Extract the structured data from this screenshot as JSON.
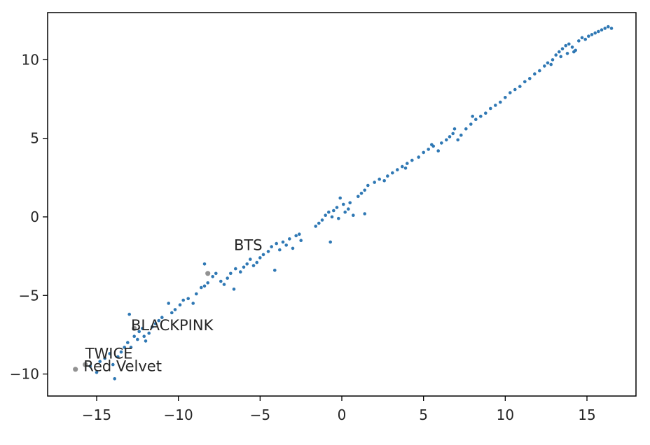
{
  "chart_data": {
    "type": "scatter",
    "title": "",
    "xlabel": "",
    "ylabel": "",
    "xlim": [
      -18.0,
      18.0
    ],
    "ylim": [
      -11.4,
      13.0
    ],
    "xticks": [
      -15,
      -10,
      -5,
      0,
      5,
      10,
      15
    ],
    "xtick_labels": [
      "−15",
      "−10",
      "−5",
      "0",
      "5",
      "10",
      "15"
    ],
    "yticks": [
      -10,
      -5,
      0,
      5,
      10
    ],
    "ytick_labels": [
      "−10",
      "−5",
      "0",
      "5",
      "10"
    ],
    "grid": false,
    "colors": {
      "points": "#2f78b4",
      "highlight": "#7f7f7f"
    },
    "series": [
      {
        "points": [
          [
            -15.4,
            -9.5
          ],
          [
            -15.0,
            -9.9
          ],
          [
            -14.8,
            -9.2
          ],
          [
            -14.5,
            -9.0
          ],
          [
            -14.2,
            -8.7
          ],
          [
            -14.0,
            -9.4
          ],
          [
            -13.9,
            -10.3
          ],
          [
            -13.7,
            -8.9
          ],
          [
            -13.5,
            -8.6
          ],
          [
            -13.3,
            -8.3
          ],
          [
            -13.1,
            -8.0
          ],
          [
            -13.0,
            -6.2
          ],
          [
            -12.9,
            -8.3
          ],
          [
            -12.7,
            -7.6
          ],
          [
            -12.5,
            -7.8
          ],
          [
            -12.4,
            -7.3
          ],
          [
            -12.2,
            -7.1
          ],
          [
            -12.1,
            -7.6
          ],
          [
            -12.0,
            -7.9
          ],
          [
            -11.8,
            -7.4
          ],
          [
            -11.6,
            -7.0
          ],
          [
            -11.4,
            -6.8
          ],
          [
            -11.2,
            -6.6
          ],
          [
            -11.0,
            -6.4
          ],
          [
            -10.6,
            -5.5
          ],
          [
            -10.4,
            -6.1
          ],
          [
            -10.2,
            -5.9
          ],
          [
            -9.9,
            -5.6
          ],
          [
            -9.7,
            -5.3
          ],
          [
            -9.4,
            -5.2
          ],
          [
            -9.1,
            -5.5
          ],
          [
            -8.9,
            -4.9
          ],
          [
            -8.6,
            -4.5
          ],
          [
            -8.4,
            -4.4
          ],
          [
            -8.2,
            -4.2
          ],
          [
            -8.4,
            -3.0
          ],
          [
            -7.9,
            -3.8
          ],
          [
            -7.7,
            -3.6
          ],
          [
            -7.4,
            -4.1
          ],
          [
            -7.2,
            -4.3
          ],
          [
            -7.0,
            -3.9
          ],
          [
            -6.8,
            -3.6
          ],
          [
            -6.6,
            -4.6
          ],
          [
            -6.5,
            -3.3
          ],
          [
            -6.2,
            -3.5
          ],
          [
            -6.0,
            -3.2
          ],
          [
            -5.8,
            -3.0
          ],
          [
            -5.6,
            -2.7
          ],
          [
            -5.4,
            -3.1
          ],
          [
            -5.2,
            -2.9
          ],
          [
            -5.0,
            -2.6
          ],
          [
            -4.8,
            -2.4
          ],
          [
            -4.5,
            -2.2
          ],
          [
            -4.3,
            -1.9
          ],
          [
            -4.1,
            -3.4
          ],
          [
            -4.0,
            -1.7
          ],
          [
            -3.8,
            -2.1
          ],
          [
            -3.6,
            -1.6
          ],
          [
            -3.4,
            -1.8
          ],
          [
            -3.2,
            -1.4
          ],
          [
            -3.0,
            -2.0
          ],
          [
            -2.8,
            -1.2
          ],
          [
            -2.6,
            -1.1
          ],
          [
            -2.5,
            -1.5
          ],
          [
            -1.6,
            -0.6
          ],
          [
            -1.4,
            -0.4
          ],
          [
            -1.2,
            -0.2
          ],
          [
            -1.0,
            0.1
          ],
          [
            -0.8,
            0.3
          ],
          [
            -0.6,
            0.0
          ],
          [
            -0.5,
            0.4
          ],
          [
            -0.3,
            0.6
          ],
          [
            -0.2,
            -0.1
          ],
          [
            -0.1,
            1.2
          ],
          [
            0.1,
            0.8
          ],
          [
            0.2,
            0.3
          ],
          [
            0.4,
            0.5
          ],
          [
            0.5,
            0.9
          ],
          [
            0.7,
            0.1
          ],
          [
            -0.7,
            -1.6
          ],
          [
            1.0,
            1.3
          ],
          [
            1.2,
            1.5
          ],
          [
            1.4,
            1.7
          ],
          [
            1.6,
            2.0
          ],
          [
            1.4,
            0.2
          ],
          [
            2.0,
            2.2
          ],
          [
            2.3,
            2.4
          ],
          [
            2.6,
            2.3
          ],
          [
            2.8,
            2.6
          ],
          [
            3.1,
            2.8
          ],
          [
            3.4,
            3.0
          ],
          [
            3.7,
            3.2
          ],
          [
            4.0,
            3.4
          ],
          [
            4.3,
            3.6
          ],
          [
            4.7,
            3.8
          ],
          [
            5.0,
            4.1
          ],
          [
            5.3,
            4.3
          ],
          [
            5.6,
            4.5
          ],
          [
            5.9,
            4.2
          ],
          [
            6.1,
            4.7
          ],
          [
            6.4,
            4.9
          ],
          [
            6.6,
            5.1
          ],
          [
            6.8,
            5.3
          ],
          [
            7.1,
            4.9
          ],
          [
            7.3,
            5.2
          ],
          [
            7.6,
            5.6
          ],
          [
            7.9,
            5.9
          ],
          [
            8.2,
            6.2
          ],
          [
            8.5,
            6.4
          ],
          [
            8.8,
            6.6
          ],
          [
            9.1,
            6.9
          ],
          [
            9.4,
            7.1
          ],
          [
            9.7,
            7.3
          ],
          [
            10.0,
            7.6
          ],
          [
            10.3,
            7.9
          ],
          [
            10.6,
            8.1
          ],
          [
            10.9,
            8.3
          ],
          [
            11.2,
            8.6
          ],
          [
            11.5,
            8.8
          ],
          [
            11.8,
            9.1
          ],
          [
            12.1,
            9.3
          ],
          [
            12.4,
            9.6
          ],
          [
            12.6,
            9.8
          ],
          [
            12.9,
            10.0
          ],
          [
            13.1,
            10.3
          ],
          [
            13.3,
            10.5
          ],
          [
            13.5,
            10.7
          ],
          [
            13.7,
            10.9
          ],
          [
            13.9,
            11.0
          ],
          [
            14.1,
            10.8
          ],
          [
            14.3,
            10.6
          ],
          [
            14.5,
            11.2
          ],
          [
            14.7,
            11.4
          ],
          [
            14.9,
            11.3
          ],
          [
            15.1,
            11.5
          ],
          [
            15.3,
            11.6
          ],
          [
            15.5,
            11.7
          ],
          [
            15.7,
            11.8
          ],
          [
            15.9,
            11.9
          ],
          [
            16.1,
            12.0
          ],
          [
            16.3,
            12.1
          ],
          [
            16.5,
            12.0
          ],
          [
            13.4,
            10.2
          ],
          [
            13.8,
            10.4
          ],
          [
            14.2,
            10.5
          ],
          [
            12.8,
            9.7
          ],
          [
            6.9,
            5.6
          ],
          [
            5.5,
            4.6
          ],
          [
            8.0,
            6.4
          ],
          [
            3.9,
            3.1
          ]
        ]
      }
    ],
    "annotations": [
      {
        "label": "BTS",
        "x": -8.2,
        "y": -3.6,
        "text_x": -6.6,
        "text_y": -1.8
      },
      {
        "label": "BLACKPINK",
        "x": -12.7,
        "y": -7.1,
        "text_x": -12.9,
        "text_y": -6.9
      },
      {
        "label": "TWICE",
        "x": -15.7,
        "y": -9.4,
        "text_x": -15.7,
        "text_y": -8.7
      },
      {
        "label": "Red Velvet",
        "x": -16.3,
        "y": -9.7,
        "text_x": -15.8,
        "text_y": -9.5
      }
    ]
  }
}
